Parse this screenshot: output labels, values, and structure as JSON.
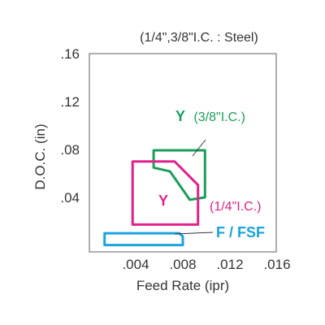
{
  "chart_data": {
    "type": "area",
    "title": "(1/4\",3/8\"I.C. : Steel)",
    "xlabel": "Feed Rate (ipr)",
    "ylabel": "D.O.C. (in)",
    "xlim": [
      0,
      0.016
    ],
    "ylim": [
      0,
      0.16
    ],
    "x_ticks": [
      0.004,
      0.008,
      0.012,
      0.016
    ],
    "x_tick_labels": [
      ".004",
      ".008",
      ".012",
      ".016"
    ],
    "y_ticks": [
      0.04,
      0.08,
      0.12,
      0.16
    ],
    "y_tick_labels": [
      ".04",
      ".08",
      ".12",
      ".16"
    ],
    "grid": false,
    "series": [
      {
        "name": "Y (3/8\"I.C.)",
        "grade": "Y",
        "detail": "(3/8\"I.C.)",
        "color": "#1a9e5a",
        "polygon": [
          [
            0.0055,
            0.082
          ],
          [
            0.0099,
            0.082
          ],
          [
            0.0099,
            0.044
          ],
          [
            0.0086,
            0.042
          ],
          [
            0.0069,
            0.065
          ],
          [
            0.0055,
            0.068
          ]
        ]
      },
      {
        "name": "Y (1/4\"I.C.)",
        "grade": "Y",
        "detail": "(1/4\"I.C.)",
        "color": "#e0218a",
        "polygon": [
          [
            0.0037,
            0.073
          ],
          [
            0.0073,
            0.073
          ],
          [
            0.0093,
            0.054
          ],
          [
            0.0093,
            0.022
          ],
          [
            0.0037,
            0.022
          ]
        ]
      },
      {
        "name": "F / FSF",
        "grade": "F / FSF",
        "detail": "",
        "color": "#1aa3dc",
        "polygon": [
          [
            0.0013,
            0.015
          ],
          [
            0.0077,
            0.015
          ],
          [
            0.008,
            0.0125
          ],
          [
            0.008,
            0.0055
          ],
          [
            0.0013,
            0.0055
          ]
        ]
      }
    ]
  }
}
